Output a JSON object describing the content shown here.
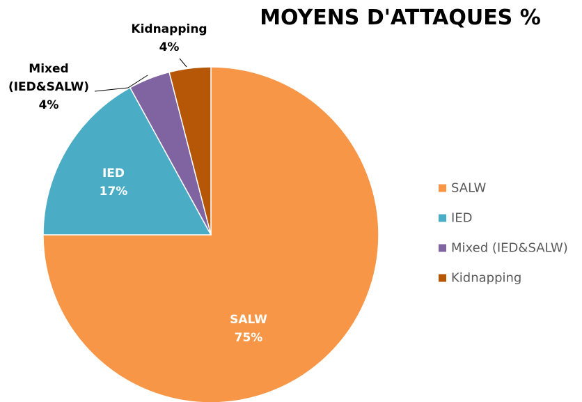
{
  "chart_data": {
    "type": "pie",
    "title": "MOYENS D'ATTAQUES %",
    "categories": [
      "SALW",
      "IED",
      "Mixed (IED&SALW)",
      "Kidnapping"
    ],
    "values": [
      75,
      17,
      4,
      4
    ],
    "value_labels": [
      "75%",
      "17%",
      "4%",
      "4%"
    ],
    "colors": [
      "#f79646",
      "#4bacc6",
      "#8064a2",
      "#b65708"
    ],
    "legend": "right"
  }
}
